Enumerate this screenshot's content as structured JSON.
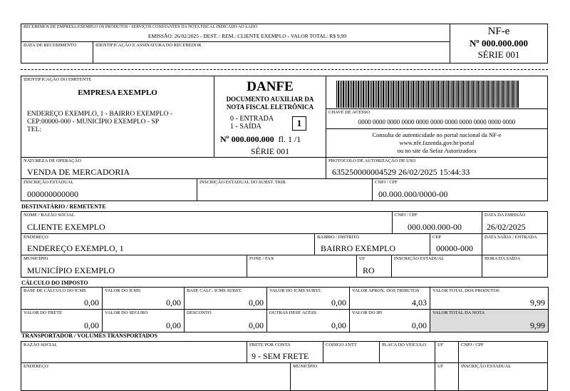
{
  "stub": {
    "received_text": "RECEBEMOS DE EMPRESA EXEMPLO OS PRODUTOS / SERVIÇOS CONSTANTES DA NOTA FISCAL INDICADO AO LADO",
    "summary": "EMISSÃO: 26/02/2025  -  DEST. / REM.: CLIENTE EXEMPLO  -  VALOR TOTAL: R$ 9,99",
    "date_label": "DATA DE RECEBIMENTO",
    "signature_label": "IDENTIFICAÇÃO E ASSINATURA DO RECEBEDOR",
    "nfe": "NF-e",
    "number": "Nº 000.000.000",
    "series": "SÉRIE 001"
  },
  "emitter": {
    "label": "IDENTIFICAÇÃO DO EMITENTE",
    "name": "EMPRESA EXEMPLO",
    "address1": "ENDEREÇO EXEMPLO, 1  -  BAIRRO EXEMPLO -",
    "address2": "CEP:00000-000  -  MUNICÍPIO EXEMPLO - SP",
    "tel": "TEL:"
  },
  "danfe": {
    "title": "DANFE",
    "subtitle1": "DOCUMENTO AUXILIAR DA",
    "subtitle2": "NOTA FISCAL ELETRÔNICA",
    "entrada": "0 - ENTRADA",
    "saida": "1 - SAÍDA",
    "type": "1",
    "number": "Nº 000.000.000",
    "page": "fl. 1 /1",
    "series": "SÉRIE 001"
  },
  "access": {
    "label": "CHAVE DE ACESSO",
    "key": "0000 0000 0000 0000 0000 0000 0000 0000 0000 0000 0000",
    "consulta1": "Consulta de autenticidade no portal nacional da NF-e",
    "consulta2": "www.nfe.fazenda.gov.br/portal",
    "consulta3": "ou no site da Sefaz Autorizadora"
  },
  "header_fields": {
    "natureza_label": "NATUREZA DE OPERAÇÃO",
    "natureza": "VENDA DE MERCADORIA",
    "protocolo_label": "PROTOCOLO DE AUTORIZAÇÃO DE USO",
    "protocolo": "635250000004529 26/02/2025 15:44:33",
    "ie_label": "INSCRIÇÃO ESTADUAL",
    "ie": "000000000000",
    "ie_st_label": "INSCRIÇÃO ESTADUAL DO SUBST. TRIB.",
    "cnpj_label": "CNPJ / CPF",
    "cnpj": "00.000.000/0000-00"
  },
  "recipient": {
    "title": "DESTINATÁRIO / REMETENTE",
    "name_label": "NOME / RAZÃO SOCIAL",
    "name": "CLIENTE EXEMPLO",
    "cnpj_label": "CNPJ / CPF",
    "cnpj": "000.000.000-00",
    "emissao_label": "DATA DA EMISSÃO",
    "emissao": "26/02/2025",
    "address_label": "ENDEREÇO",
    "address": "ENDEREÇO EXEMPLO, 1",
    "bairro_label": "BAIRRO / DISTRITO",
    "bairro": "BAIRRO EXEMPLO",
    "cep_label": "CEP",
    "cep": "00000-000",
    "saida_label": "DATA SAÍDA / ENTRADA",
    "municipio_label": "MUNICÍPIO",
    "municipio": "MUNICÍPIO EXEMPLO",
    "fone_label": "FONE / FAX",
    "uf_label": "UF",
    "uf": "RO",
    "ie_label": "INSCRIÇÃO ESTADUAL",
    "hora_label": "HORA DA SAÍDA"
  },
  "tax": {
    "title": "CÁLCULO DO IMPOSTO",
    "cells": [
      {
        "label": "BASE DE CÁLCULO DO ICMS",
        "value": "0,00"
      },
      {
        "label": "VALOR DO ICMS",
        "value": "0,00"
      },
      {
        "label": "BASE CÁLC. ICMS SUBST.",
        "value": "0,00"
      },
      {
        "label": "VALOR DO ICMS SUBST.",
        "value": "0,00"
      },
      {
        "label": "VALOR APROX. DOS TRIBUTOS",
        "value": "4,03"
      },
      {
        "label": "VALOR TOTAL DOS PRODUTOS",
        "value": "9,99"
      },
      {
        "label": "VALOR DO FRETE",
        "value": "0,00"
      },
      {
        "label": "VALOR DO SEGURO",
        "value": "0,00"
      },
      {
        "label": "DESCONTO",
        "value": "0,00"
      },
      {
        "label": "OUTRAS DESP. ACESS.",
        "value": "0,00"
      },
      {
        "label": "VALOR DO IPI",
        "value": "0,00"
      },
      {
        "label": "VALOR TOTAL DA NOTA",
        "value": "9,99"
      }
    ]
  },
  "transport": {
    "title": "TRANSPORTADOR / VOLUMES TRANSPORTADOS",
    "razao_label": "RAZÃO SOCIAL",
    "frete_label": "FRETE POR CONTA",
    "frete": "9 - SEM FRETE",
    "antt_label": "CÓDIGO ANTT",
    "placa_label": "PLACA DO VEÍCULO",
    "uf_label": "UF",
    "cnpj_label": "CNPJ / CPF",
    "endereco_label": "ENDEREÇO",
    "municipio_label": "MUNICÍPIO",
    "uf2_label": "UF",
    "ie_label": "INSCRIÇÃO ESTADUAL"
  },
  "colors": {
    "highlight": "#dcdcdc"
  }
}
